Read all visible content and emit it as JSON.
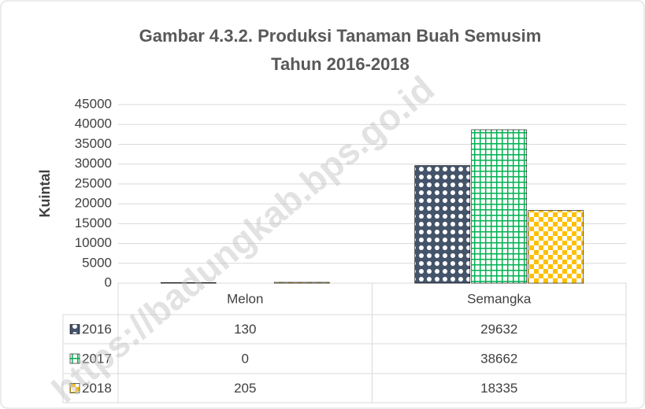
{
  "chart_data": {
    "type": "bar",
    "title": "Gambar 4.3.2. Produksi Tanaman Buah Semusim",
    "subtitle": "Tahun 2016-2018",
    "y_label": "Kuintal",
    "categories": [
      "Melon",
      "Semangka"
    ],
    "series": [
      {
        "name": "2016",
        "color": "#44546a",
        "values": [
          130,
          29632
        ]
      },
      {
        "name": "2017",
        "color": "#00b050",
        "values": [
          0,
          38662
        ]
      },
      {
        "name": "2018",
        "color": "#ffc000",
        "values": [
          205,
          18335
        ]
      }
    ],
    "ylim": [
      0,
      45000
    ],
    "yticks": [
      0,
      5000,
      10000,
      15000,
      20000,
      25000,
      30000,
      35000,
      40000,
      45000
    ],
    "grid": true,
    "data_table": true,
    "watermark": "https://badungkab.bps.go.id"
  }
}
